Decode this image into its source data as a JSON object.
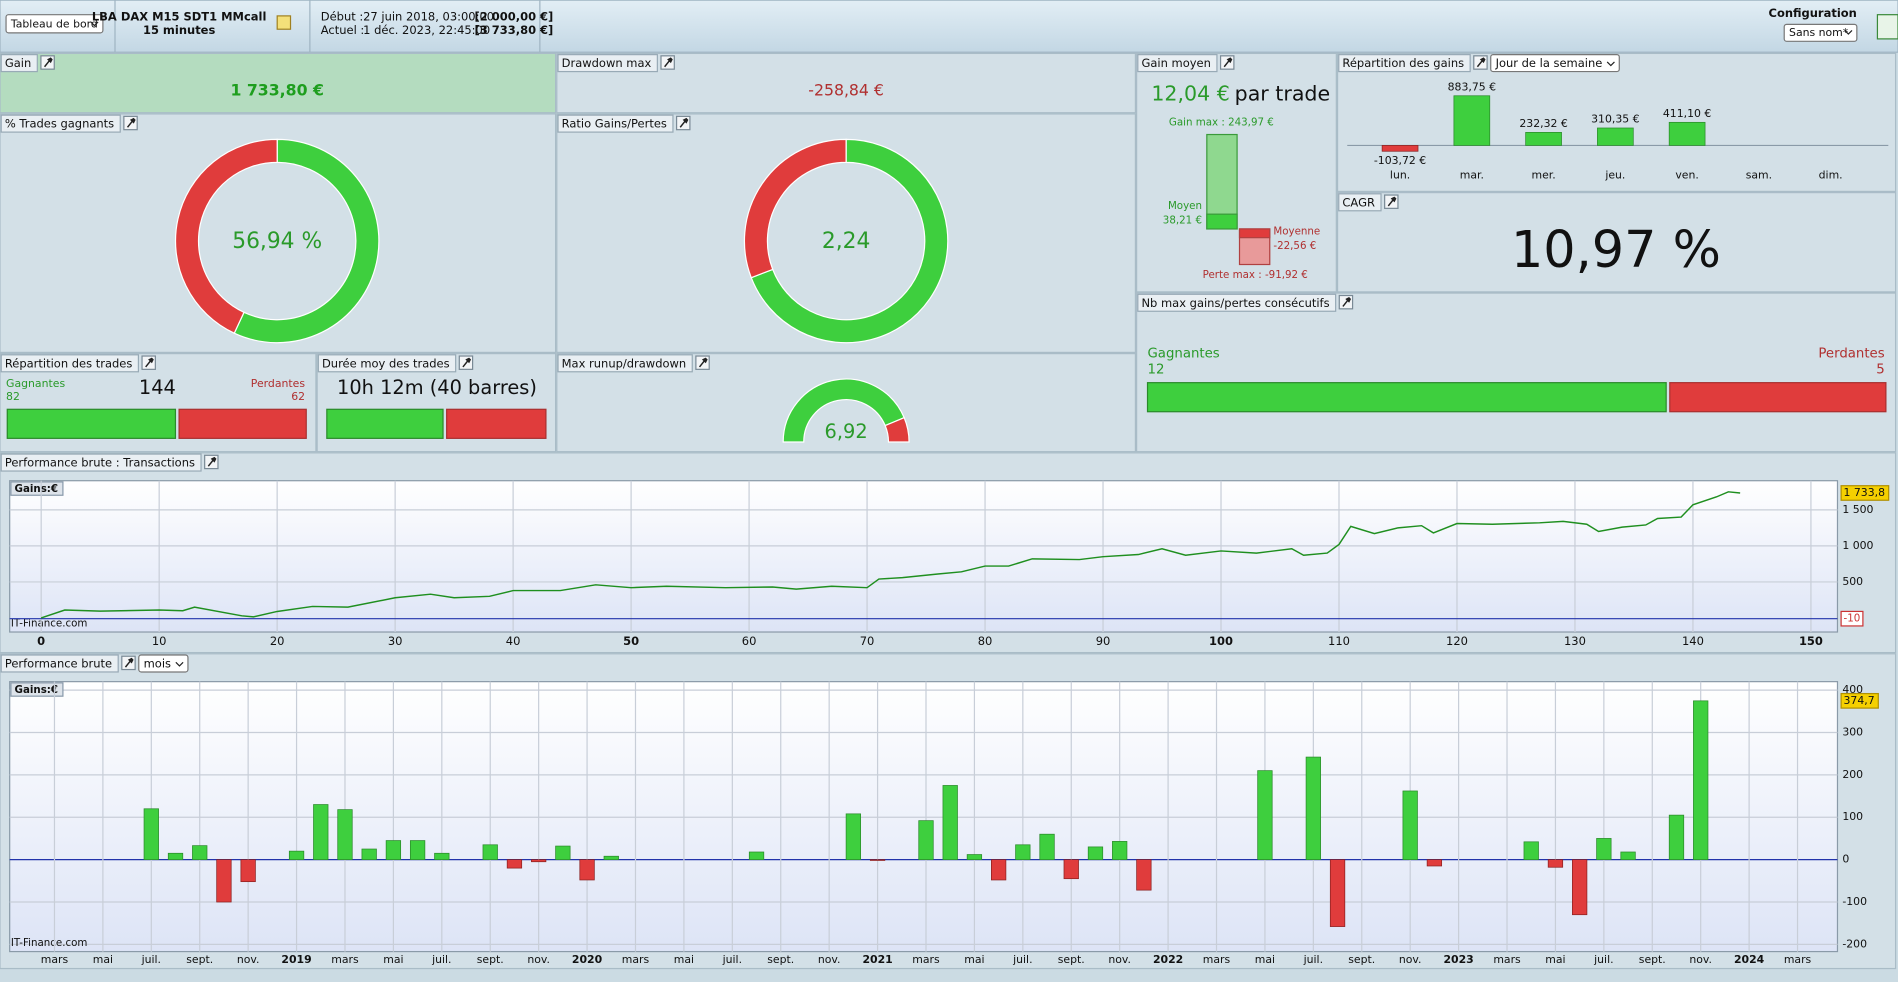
{
  "header": {
    "view_select": "Tableau de bord",
    "strategy": "LBA DAX M15 SDT1 MMcall",
    "timeframe": "15 minutes",
    "start_label": "Début :",
    "start_date": "27 juin 2018, 03:00:00",
    "start_capital": "[2 000,00 €]",
    "current_label": "Actuel :",
    "current_date": "1 déc. 2023, 22:45:00",
    "current_capital": "[3 733,80 €]",
    "config_title": "Configuration",
    "config_select": "Sans nom*"
  },
  "panels": {
    "gain": {
      "title": "Gain",
      "value": "1 733,80 €"
    },
    "drawdown": {
      "title": "Drawdown max",
      "value": "-258,84 €"
    },
    "avg_gain": {
      "title": "Gain moyen",
      "value": "12,04 €",
      "unit": "par trade",
      "max_label": "Gain max : 243,97 €",
      "max": 243.97,
      "avg_win_label": "Moyen",
      "avg_win_value": "38,21 €",
      "avg_win": 38.21,
      "avg_loss_label": "Moyenne",
      "avg_loss_value": "-22,56 €",
      "avg_loss": -22.56,
      "min_label": "Perte max : -91,92 €",
      "min": -91.92
    },
    "distribution": {
      "title": "Répartition des gains",
      "select": "Jour de la semaine"
    },
    "win_rate": {
      "title": "% Trades gagnants",
      "value": 56.94,
      "label": "56,94 %"
    },
    "ratio": {
      "title": "Ratio Gains/Pertes",
      "value": 2.24,
      "label": "2,24"
    },
    "cagr": {
      "title": "CAGR",
      "value": "10,97 %"
    },
    "streaks": {
      "title": "Nb max gains/pertes consécutifs",
      "win_label": "Gagnantes",
      "win": 12,
      "loss_label": "Perdantes",
      "loss": 5
    },
    "trades": {
      "title": "Répartition des trades",
      "win_label": "Gagnantes",
      "win": 82,
      "total": 144,
      "loss_label": "Perdantes",
      "loss": 62
    },
    "duration": {
      "title": "Durée moy des trades",
      "value": "10h 12m (40 barres)"
    },
    "runup": {
      "title": "Max runup/drawdown",
      "value": 6.92,
      "label": "6,92"
    },
    "equity": {
      "title": "Performance brute : Transactions"
    },
    "monthly": {
      "title": "Performance brute",
      "select": "mois"
    }
  },
  "chart_data": [
    {
      "type": "bar",
      "categories": [
        "lun.",
        "mar.",
        "mer.",
        "jeu.",
        "ven.",
        "sam.",
        "dim."
      ],
      "values": [
        -103.72,
        883.75,
        232.32,
        310.35,
        411.1,
        null,
        null
      ],
      "value_labels": [
        "-103,72 €",
        "883,75 €",
        "232,32 €",
        "310,35 €",
        "411,10 €",
        null,
        null
      ],
      "color": "#3ecf3e",
      "negative_color": "#e03c3c",
      "ylim": [
        -172,
        1185
      ]
    },
    {
      "type": "line",
      "label": "Gains:€",
      "watermark": "IT-Finance.com",
      "color": "#1f8f1f",
      "x": [
        0,
        2,
        5,
        10,
        12,
        13,
        17,
        18,
        20,
        23,
        26,
        30,
        33,
        35,
        38,
        40,
        44,
        47,
        50,
        53,
        58,
        62,
        64,
        67,
        70,
        71,
        73,
        76,
        78,
        80,
        82,
        84,
        88,
        90,
        93,
        95,
        97,
        100,
        103,
        106,
        107,
        109,
        110,
        111,
        113,
        115,
        117,
        118,
        120,
        123,
        127,
        129,
        131,
        132,
        134,
        136,
        137,
        139,
        140,
        142,
        143,
        144
      ],
      "values": [
        0,
        110,
        95,
        110,
        100,
        150,
        30,
        15,
        90,
        160,
        150,
        280,
        330,
        280,
        300,
        380,
        380,
        460,
        420,
        440,
        420,
        430,
        400,
        440,
        420,
        540,
        560,
        610,
        640,
        720,
        720,
        820,
        810,
        850,
        880,
        960,
        870,
        930,
        900,
        960,
        870,
        900,
        1020,
        1270,
        1170,
        1250,
        1280,
        1180,
        1310,
        1300,
        1320,
        1340,
        1300,
        1200,
        1260,
        1290,
        1380,
        1400,
        1570,
        1680,
        1750,
        1733.8
      ],
      "xlim": [
        -2.67,
        152.25
      ],
      "xticks": [
        0,
        10,
        20,
        30,
        40,
        50,
        60,
        70,
        80,
        90,
        100,
        110,
        120,
        130,
        140,
        150
      ],
      "ylim": [
        -195,
        1904
      ],
      "yticks": [
        {
          "value": 1500,
          "label": "1 500"
        },
        {
          "value": 1000,
          "label": "1 000"
        },
        500
      ],
      "end_label": {
        "value": 1733.8,
        "label": "1 733,8"
      },
      "baseline": {
        "value": -10,
        "label": "-10"
      },
      "grid": true
    },
    {
      "type": "bar",
      "label": "Gains:€",
      "watermark": "IT-Finance.com",
      "categories": [
        null,
        "mars",
        null,
        "mai",
        null,
        "juil.",
        null,
        "sept.",
        null,
        "nov.",
        null,
        "2019",
        null,
        "mars",
        null,
        "mai",
        null,
        "juil.",
        null,
        "sept.",
        null,
        "nov.",
        null,
        "2020",
        null,
        "mars",
        null,
        "mai",
        null,
        "juil.",
        null,
        "sept.",
        null,
        "nov.",
        null,
        "2021",
        null,
        "mars",
        null,
        "mai",
        null,
        "juil.",
        null,
        "sept.",
        null,
        "nov.",
        null,
        "2022",
        null,
        "mars",
        null,
        "mai",
        null,
        "juil.",
        null,
        "sept.",
        null,
        "nov.",
        null,
        "2023",
        null,
        "mars",
        null,
        "mai",
        null,
        "juil.",
        null,
        "sept.",
        null,
        "nov.",
        null,
        "2024",
        null,
        "mars",
        null
      ],
      "values": [
        null,
        null,
        null,
        null,
        null,
        120,
        15,
        33,
        -100,
        -52,
        null,
        20,
        130,
        118,
        25,
        45,
        45,
        15,
        null,
        35,
        -20,
        -5,
        32,
        -48,
        8,
        null,
        null,
        null,
        null,
        null,
        18,
        null,
        null,
        null,
        108,
        -2,
        null,
        92,
        175,
        12,
        -48,
        35,
        60,
        -45,
        30,
        43,
        -72,
        null,
        null,
        null,
        null,
        210,
        null,
        242,
        -158,
        null,
        null,
        162,
        -15,
        null,
        null,
        null,
        42,
        -18,
        -130,
        50,
        18,
        null,
        105,
        374.7,
        null,
        null,
        null,
        null,
        null
      ],
      "color": "#3ecf3e",
      "negative_color": "#e03c3c",
      "ylim": [
        -217,
        420
      ],
      "yticks": [
        400,
        300,
        200,
        100,
        0,
        -100,
        -200
      ],
      "end_label": {
        "value": 374.7,
        "label": "374,7"
      },
      "grid": true
    }
  ]
}
